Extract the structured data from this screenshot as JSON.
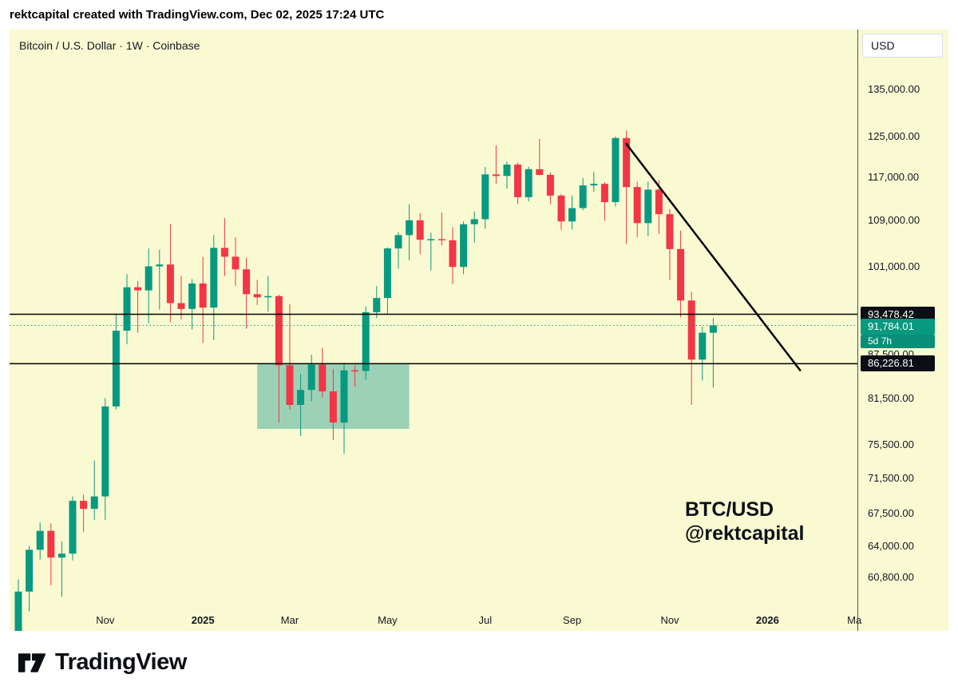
{
  "header": {
    "attribution": "rektcapital created with TradingView.com, Dec 02, 2025 17:24 UTC"
  },
  "chart": {
    "symbol_title": "Bitcoin / U.S. Dollar · 1W · Coinbase",
    "currency_button": "USD",
    "watermark_line1": "BTC/USD",
    "watermark_line2": "@rektcapital",
    "price_labels": {
      "resistance": "93,478.42",
      "current": "91,784.01",
      "countdown": "5d 7h",
      "support": "86,226.81"
    }
  },
  "footer": {
    "brand": "TradingView"
  },
  "chart_data": {
    "type": "candlestick",
    "symbol": "BTC/USD",
    "timeframe": "1W",
    "exchange": "Coinbase",
    "scale": "logarithmic",
    "price_scale": {
      "min": 55700,
      "max": 148900
    },
    "y_ticks": [
      {
        "value": 135000,
        "label": "135,000.00"
      },
      {
        "value": 125000,
        "label": "125,000.00"
      },
      {
        "value": 117000,
        "label": "117,000.00"
      },
      {
        "value": 109000,
        "label": "109,000.00"
      },
      {
        "value": 101000,
        "label": "101,000.00"
      },
      {
        "value": 87500,
        "label": "87,500.00"
      },
      {
        "value": 81500,
        "label": "81,500.00"
      },
      {
        "value": 75500,
        "label": "75,500.00"
      },
      {
        "value": 71500,
        "label": "71,500.00"
      },
      {
        "value": 67500,
        "label": "67,500.00"
      },
      {
        "value": 64000,
        "label": "64,000.00"
      },
      {
        "value": 60800,
        "label": "60,800.00"
      }
    ],
    "x_labels": [
      {
        "text": "Nov",
        "week": 8,
        "bold": false
      },
      {
        "text": "2025",
        "week": 17,
        "bold": true
      },
      {
        "text": "Mar",
        "week": 25,
        "bold": false
      },
      {
        "text": "May",
        "week": 34,
        "bold": false
      },
      {
        "text": "Jul",
        "week": 43,
        "bold": false
      },
      {
        "text": "Sep",
        "week": 51,
        "bold": false
      },
      {
        "text": "Nov",
        "week": 60,
        "bold": false
      },
      {
        "text": "2026",
        "week": 69,
        "bold": true
      },
      {
        "text": "Ma",
        "week": 77,
        "bold": false
      }
    ],
    "candle_format": [
      "date",
      "open",
      "high",
      "low",
      "close"
    ],
    "candles": [
      [
        "2024-09-09",
        54900,
        60600,
        52600,
        59400
      ],
      [
        "2024-09-16",
        59400,
        64000,
        57500,
        63600
      ],
      [
        "2024-09-23",
        63600,
        66500,
        62600,
        65600
      ],
      [
        "2024-09-30",
        65600,
        66400,
        60000,
        62800
      ],
      [
        "2024-10-07",
        62800,
        64500,
        58900,
        63200
      ],
      [
        "2024-10-14",
        63200,
        69400,
        62500,
        68900
      ],
      [
        "2024-10-21",
        68900,
        69600,
        65500,
        68000
      ],
      [
        "2024-10-28",
        68000,
        73600,
        66800,
        69400
      ],
      [
        "2024-11-04",
        69400,
        81500,
        66800,
        80400
      ],
      [
        "2024-11-11",
        80400,
        93500,
        80000,
        91000
      ],
      [
        "2024-11-18",
        91000,
        99800,
        89000,
        97700
      ],
      [
        "2024-11-25",
        97700,
        98700,
        90700,
        97200
      ],
      [
        "2024-12-02",
        97200,
        104100,
        92100,
        101100
      ],
      [
        "2024-12-09",
        101100,
        103900,
        94200,
        101400
      ],
      [
        "2024-12-16",
        101400,
        108300,
        92300,
        95200
      ],
      [
        "2024-12-23",
        95200,
        99500,
        92700,
        94300
      ],
      [
        "2024-12-30",
        94300,
        99000,
        91200,
        98300
      ],
      [
        "2025-01-06",
        98300,
        102700,
        89200,
        94500
      ],
      [
        "2025-01-13",
        94500,
        106400,
        89600,
        104200
      ],
      [
        "2025-01-20",
        104200,
        109400,
        99500,
        102700
      ],
      [
        "2025-01-27",
        102700,
        106000,
        97900,
        100600
      ],
      [
        "2025-02-03",
        100600,
        102500,
        91300,
        96600
      ],
      [
        "2025-02-10",
        96600,
        98900,
        94900,
        96100
      ],
      [
        "2025-02-17",
        96100,
        99500,
        93900,
        96300
      ],
      [
        "2025-02-24",
        96300,
        96500,
        78300,
        86000
      ],
      [
        "2025-03-03",
        86000,
        95000,
        80000,
        80600
      ],
      [
        "2025-03-10",
        80600,
        84800,
        76600,
        82600
      ],
      [
        "2025-03-17",
        82600,
        87500,
        81100,
        86100
      ],
      [
        "2025-03-24",
        86100,
        88500,
        81600,
        82400
      ],
      [
        "2025-03-31",
        82400,
        85500,
        76100,
        78300
      ],
      [
        "2025-04-07",
        78300,
        86100,
        74400,
        85300
      ],
      [
        "2025-04-14",
        85300,
        86000,
        83000,
        85200
      ],
      [
        "2025-04-21",
        85200,
        94700,
        84000,
        93800
      ],
      [
        "2025-04-28",
        93800,
        97900,
        92900,
        96000
      ],
      [
        "2025-05-05",
        96000,
        104300,
        93600,
        104100
      ],
      [
        "2025-05-12",
        104100,
        106900,
        100700,
        106400
      ],
      [
        "2025-05-19",
        106400,
        111900,
        102100,
        109000
      ],
      [
        "2025-05-26",
        109000,
        110300,
        103100,
        105600
      ],
      [
        "2025-06-02",
        105600,
        106800,
        100400,
        105700
      ],
      [
        "2025-06-09",
        105700,
        110400,
        104600,
        105500
      ],
      [
        "2025-06-16",
        105500,
        107800,
        98200,
        101000
      ],
      [
        "2025-06-23",
        101000,
        108800,
        99800,
        108300
      ],
      [
        "2025-06-30",
        108300,
        110600,
        105100,
        109200
      ],
      [
        "2025-07-07",
        109200,
        118900,
        107500,
        117500
      ],
      [
        "2025-07-14",
        117500,
        123200,
        115700,
        117200
      ],
      [
        "2025-07-21",
        117200,
        120000,
        114800,
        119400
      ],
      [
        "2025-07-28",
        119400,
        119800,
        111900,
        113200
      ],
      [
        "2025-08-04",
        113200,
        119000,
        112400,
        118500
      ],
      [
        "2025-08-11",
        118500,
        124500,
        117300,
        117400
      ],
      [
        "2025-08-18",
        117400,
        117900,
        111900,
        113500
      ],
      [
        "2025-08-25",
        113500,
        113800,
        107300,
        108800
      ],
      [
        "2025-09-01",
        108800,
        113500,
        107400,
        111200
      ],
      [
        "2025-09-08",
        111200,
        116800,
        110800,
        115400
      ],
      [
        "2025-09-15",
        115400,
        118000,
        114200,
        115700
      ],
      [
        "2025-09-22",
        115700,
        116000,
        108900,
        112300
      ],
      [
        "2025-09-29",
        112300,
        125000,
        111500,
        124700
      ],
      [
        "2025-10-06",
        124700,
        126200,
        104900,
        115100
      ],
      [
        "2025-10-13",
        115100,
        116100,
        106000,
        108500
      ],
      [
        "2025-10-20",
        108500,
        116100,
        106200,
        114600
      ],
      [
        "2025-10-27",
        114600,
        116400,
        106600,
        110100
      ],
      [
        "2025-11-03",
        110100,
        111000,
        98900,
        104000
      ],
      [
        "2025-11-10",
        104000,
        107200,
        93000,
        95600
      ],
      [
        "2025-11-17",
        95600,
        97000,
        80600,
        86800
      ],
      [
        "2025-11-24",
        86800,
        91600,
        83900,
        90700
      ],
      [
        "2025-12-01",
        90700,
        92900,
        82900,
        91784.01
      ]
    ],
    "horizontal_lines": [
      {
        "price": 93478.42,
        "label": "93,478.42",
        "name": "resistance-line"
      },
      {
        "price": 86226.81,
        "label": "86,226.81",
        "name": "support-line"
      }
    ],
    "current_price": {
      "value": 91784.01,
      "label": "91,784.01",
      "countdown": "5d 7h"
    },
    "highlight_box": {
      "start_week": 22,
      "end_week": 36,
      "price_top": 86226.81,
      "price_bottom": 77500
    },
    "trendline": {
      "start_week": 56,
      "start_price": 123500,
      "end_week": 72,
      "end_price": 85300
    },
    "colors": {
      "up": "#089981",
      "down": "#F23645",
      "background": "#FAFAD2",
      "line": "#000000",
      "box_fill": "rgba(16,148,140,0.40)",
      "badge_dark": "#0c0e15",
      "badge_teal": "#089981"
    }
  }
}
